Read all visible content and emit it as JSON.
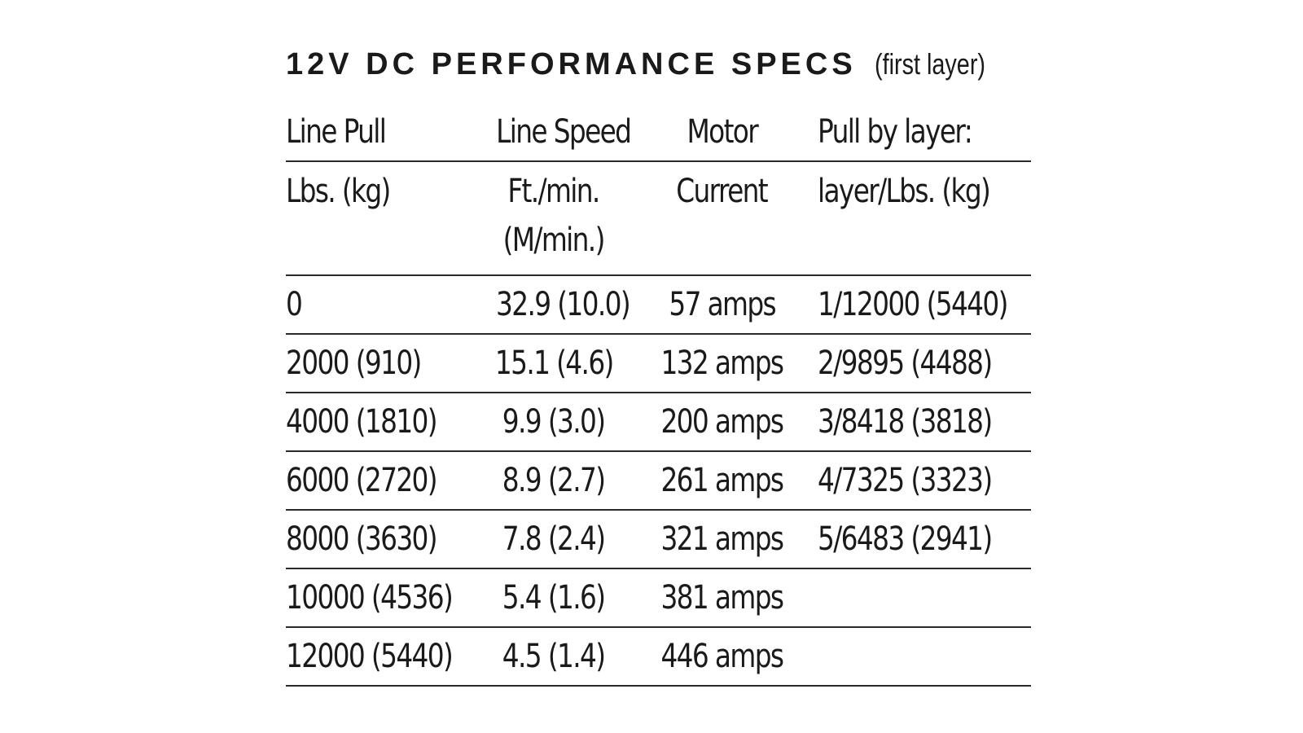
{
  "title": {
    "main": "12V DC PERFORMANCE SPECS",
    "sub": "(first layer)"
  },
  "headers": {
    "row1": [
      "Line Pull",
      "Line Speed",
      "Motor",
      "Pull by layer:"
    ],
    "row2": [
      "Lbs. (kg)",
      "Ft./min.",
      "Current",
      "layer/Lbs. (kg)"
    ],
    "row2_speed_line2": "(M/min.)"
  },
  "rows": [
    {
      "pull": "0",
      "speed": "32.9 (10.0)",
      "current": "57 amps",
      "layer": "1/12000 (5440)"
    },
    {
      "pull": "2000 (910)",
      "speed": "15.1 (4.6)",
      "current": "132 amps",
      "layer": "2/9895 (4488)"
    },
    {
      "pull": "4000 (1810)",
      "speed": "9.9 (3.0)",
      "current": "200 amps",
      "layer": "3/8418 (3818)"
    },
    {
      "pull": "6000 (2720)",
      "speed": "8.9 (2.7)",
      "current": "261 amps",
      "layer": "4/7325 (3323)"
    },
    {
      "pull": "8000 (3630)",
      "speed": "7.8 (2.4)",
      "current": "321 amps",
      "layer": "5/6483 (2941)"
    },
    {
      "pull": "10000 (4536)",
      "speed": "5.4 (1.6)",
      "current": "381 amps",
      "layer": ""
    },
    {
      "pull": "12000 (5440)",
      "speed": "4.5 (1.4)",
      "current": "446 amps",
      "layer": ""
    }
  ],
  "colors": {
    "text": "#1a1a1a",
    "rule": "#2a2a2a",
    "background": "#ffffff"
  }
}
